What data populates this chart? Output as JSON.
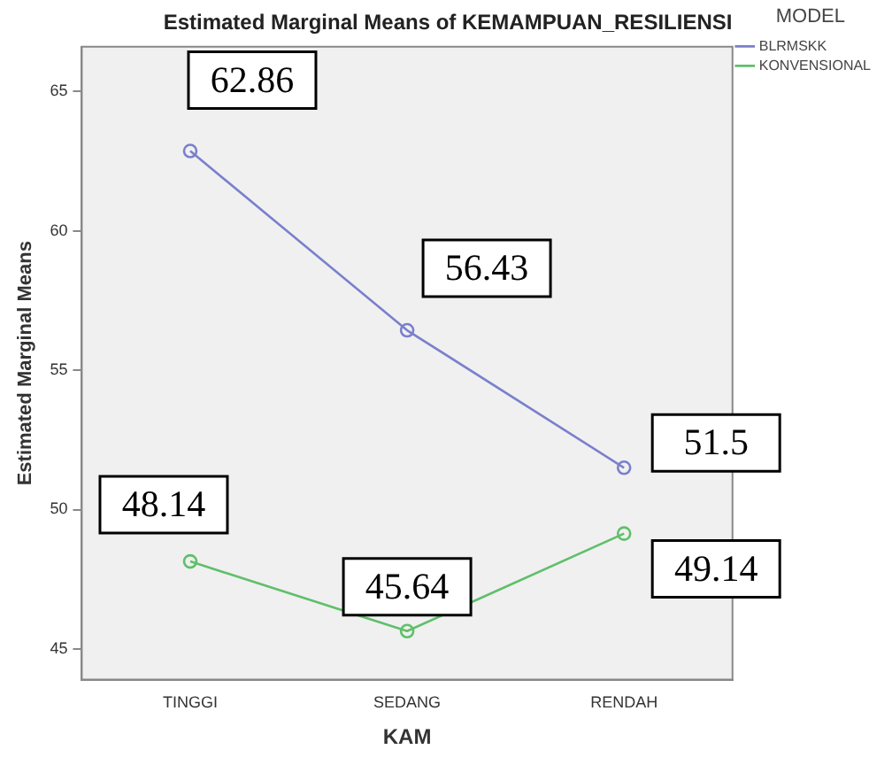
{
  "chart_data": {
    "type": "line",
    "title": "Estimated Marginal Means of KEMAMPUAN_RESILIENSI",
    "xlabel": "KAM",
    "ylabel": "Estimated Marginal Means",
    "legend_title": "MODEL",
    "categories": [
      "TINGGI",
      "SEDANG",
      "RENDAH"
    ],
    "series": [
      {
        "name": "BLRMSKK",
        "color": "#7a80cc",
        "values": [
          62.86,
          56.43,
          51.5
        ]
      },
      {
        "name": "KONVENSIONAL",
        "color": "#5fbf6a",
        "values": [
          48.14,
          45.64,
          49.14
        ]
      }
    ],
    "ylim": [
      43.9,
      66.6
    ],
    "yticks": [
      45,
      50,
      55,
      60,
      65
    ],
    "grid": false,
    "legend": "top right",
    "marker": "circle",
    "line_style": "solid",
    "data_labels": true
  }
}
